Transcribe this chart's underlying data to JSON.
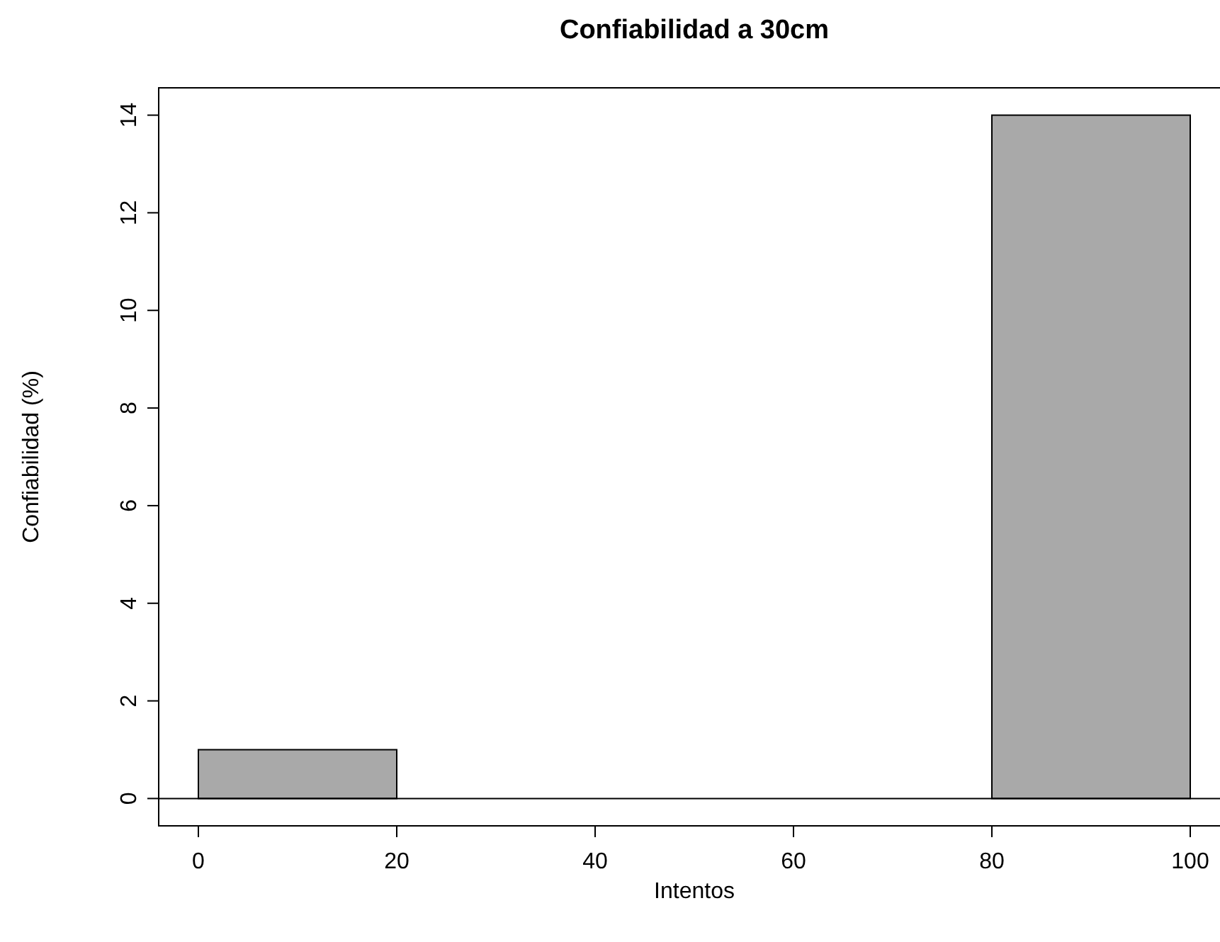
{
  "chart_data": {
    "type": "histogram",
    "title": "Confiabilidad a 30cm",
    "xlabel": "Intentos",
    "ylabel": "Confiabilidad (%)",
    "bins": [
      0,
      20,
      40,
      60,
      80,
      100
    ],
    "values": [
      1,
      0,
      0,
      0,
      14
    ],
    "color": "#a9a9a9",
    "xlim": [
      -4,
      104
    ],
    "xticks": [
      0,
      20,
      40,
      60,
      80,
      100
    ],
    "ylim": [
      -0.56,
      14.56
    ],
    "yticks": [
      0,
      2,
      4,
      6,
      8,
      10,
      12,
      14
    ],
    "ref_lines": [
      {
        "axis": "y",
        "value": 0,
        "color": "#000000"
      }
    ],
    "grid": false
  }
}
